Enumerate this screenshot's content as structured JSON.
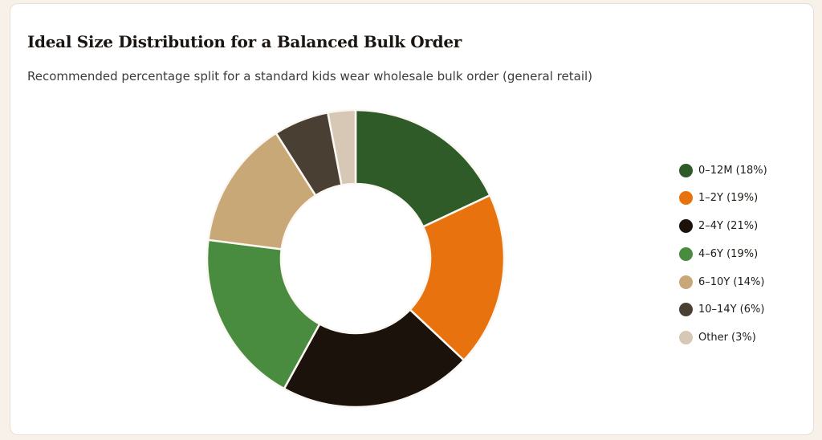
{
  "title": "Ideal Size Distribution for a Balanced Bulk Order",
  "subtitle": "Recommended percentage split for a standard kids wear wholesale bulk order (general retail)",
  "chart_data": {
    "type": "pie",
    "variant": "doughnut",
    "title": "Ideal Size Distribution for a Balanced Bulk Order",
    "subtitle": "Recommended percentage split for a standard kids wear wholesale bulk order (general retail)",
    "legend_position": "right",
    "categories": [
      "0–12M",
      "1–2Y",
      "2–4Y",
      "4–6Y",
      "6–10Y",
      "10–14Y",
      "Other"
    ],
    "values": [
      18,
      19,
      21,
      19,
      14,
      6,
      3
    ],
    "legend_labels": [
      "0–12M (18%)",
      "1–2Y (19%)",
      "2–4Y (21%)",
      "4–6Y (19%)",
      "6–10Y (14%)",
      "10–14Y (6%)",
      "Other (3%)"
    ],
    "colors": [
      "#2e5b27",
      "#e8730e",
      "#1b130b",
      "#4a8c3f",
      "#c9a877",
      "#4a3f33",
      "#d6c8b5"
    ]
  }
}
